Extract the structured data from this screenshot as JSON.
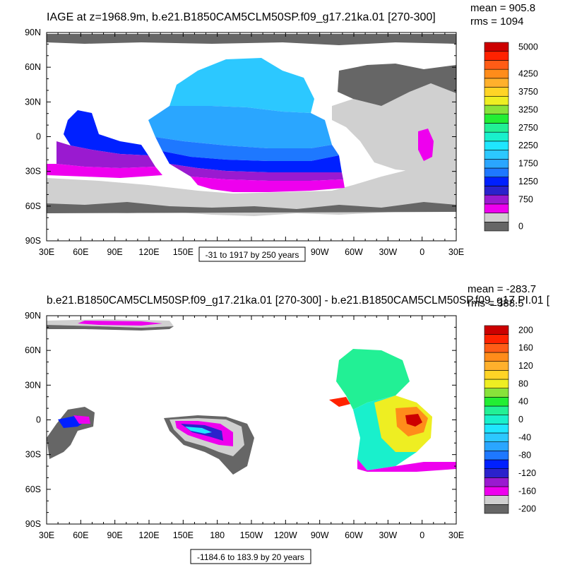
{
  "panels": [
    {
      "id": "top",
      "title": "IAGE at z=1968.9m, b.e21.B1850CAM5CLM50SP.f09_g17.21ka.01 [270-300]",
      "mean": "mean = 905.8",
      "rms": "rms = 1094",
      "caption": "-31 to 1917 by 250 years",
      "colorbar": {
        "colors": [
          "#666666",
          "#d0d0d0",
          "#ee00ee",
          "#9a1ad0",
          "#2b22cc",
          "#0020ff",
          "#1e78ff",
          "#2aa6ff",
          "#2cc8ff",
          "#1fe6ff",
          "#19f0cc",
          "#22f095",
          "#22ee33",
          "#88e23a",
          "#eeee22",
          "#ffd426",
          "#ffb02c",
          "#ff8c1a",
          "#ff5c16",
          "#ff2200",
          "#cc0000"
        ],
        "labels": [
          {
            "index": 0,
            "text": "0"
          },
          {
            "index": 3,
            "text": "750"
          },
          {
            "index": 5,
            "text": "1250"
          },
          {
            "index": 7,
            "text": "1750"
          },
          {
            "index": 9,
            "text": "2250"
          },
          {
            "index": 11,
            "text": "2750"
          },
          {
            "index": 13,
            "text": "3250"
          },
          {
            "index": 15,
            "text": "3750"
          },
          {
            "index": 17,
            "text": "4250"
          },
          {
            "index": 20,
            "text": "5000"
          }
        ]
      }
    },
    {
      "id": "bottom",
      "title": "b.e21.B1850CAM5CLM50SP.f09_g17.21ka.01 [270-300] - b.e21.B1850CAM5CLM50SP.f09_g17.PI.01 [",
      "mean": "mean = -283.7",
      "rms": "rms = 388.5",
      "caption": "-1184.6 to 183.9 by 20 years",
      "colorbar": {
        "colors": [
          "#666666",
          "#d0d0d0",
          "#ee00ee",
          "#9a1ad0",
          "#2b22cc",
          "#0020ff",
          "#1e78ff",
          "#2aa6ff",
          "#2cc8ff",
          "#1fe6ff",
          "#19f0cc",
          "#22f095",
          "#22ee33",
          "#88e23a",
          "#eeee22",
          "#ffd426",
          "#ffb02c",
          "#ff8c1a",
          "#ff5c16",
          "#ff2200",
          "#cc0000"
        ],
        "labels": [
          {
            "index": 0,
            "text": "-200"
          },
          {
            "index": 2,
            "text": "-160"
          },
          {
            "index": 4,
            "text": "-120"
          },
          {
            "index": 6,
            "text": "-80"
          },
          {
            "index": 8,
            "text": "-40"
          },
          {
            "index": 10,
            "text": "0"
          },
          {
            "index": 12,
            "text": "40"
          },
          {
            "index": 14,
            "text": "80"
          },
          {
            "index": 16,
            "text": "120"
          },
          {
            "index": 18,
            "text": "160"
          },
          {
            "index": 20,
            "text": "200"
          }
        ]
      }
    }
  ],
  "axes": {
    "lon_labels": [
      "30E",
      "60E",
      "90E",
      "120E",
      "150E",
      "180",
      "150W",
      "120W",
      "90W",
      "60W",
      "30W",
      "0",
      "30E"
    ],
    "lat_labels": [
      "90N",
      "60N",
      "30N",
      "0",
      "30S",
      "60S",
      "90S"
    ]
  }
}
